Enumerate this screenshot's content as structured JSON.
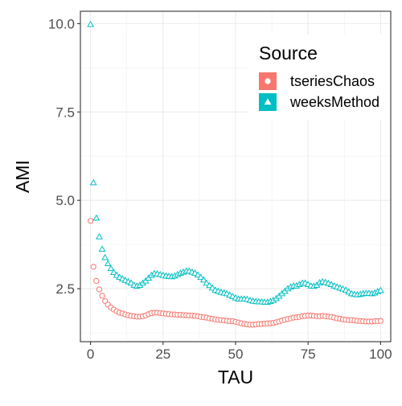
{
  "chart_data": {
    "type": "scatter",
    "xlabel": "TAU",
    "ylabel": "AMI",
    "xlim": [
      -3.5,
      103.5
    ],
    "ylim": [
      1.0,
      10.35
    ],
    "x_ticks": [
      0,
      25,
      50,
      75,
      100
    ],
    "y_ticks": [
      2.5,
      5.0,
      7.5,
      10.0
    ],
    "x_tick_labels": [
      "0",
      "25",
      "50",
      "75",
      "100"
    ],
    "y_tick_labels": [
      "2.5",
      "5.0",
      "7.5",
      "10.0"
    ],
    "grid": true,
    "legend": {
      "title": "Source",
      "position": "top-right"
    },
    "series": [
      {
        "name": "tseriesChaos",
        "color": "#F8766D",
        "marker": "circle",
        "x": [
          0,
          1,
          2,
          3,
          4,
          5,
          6,
          7,
          8,
          9,
          10,
          11,
          12,
          13,
          14,
          15,
          16,
          17,
          18,
          19,
          20,
          21,
          22,
          23,
          24,
          25,
          26,
          27,
          28,
          29,
          30,
          31,
          32,
          33,
          34,
          35,
          36,
          37,
          38,
          39,
          40,
          41,
          42,
          43,
          44,
          45,
          46,
          47,
          48,
          49,
          50,
          51,
          52,
          53,
          54,
          55,
          56,
          57,
          58,
          59,
          60,
          61,
          62,
          63,
          64,
          65,
          66,
          67,
          68,
          69,
          70,
          71,
          72,
          73,
          74,
          75,
          76,
          77,
          78,
          79,
          80,
          81,
          82,
          83,
          84,
          85,
          86,
          87,
          88,
          89,
          90,
          91,
          92,
          93,
          94,
          95,
          96,
          97,
          98,
          99,
          100
        ],
        "values": [
          4.42,
          3.12,
          2.72,
          2.48,
          2.3,
          2.15,
          2.05,
          1.97,
          1.91,
          1.86,
          1.82,
          1.8,
          1.77,
          1.75,
          1.73,
          1.72,
          1.71,
          1.71,
          1.72,
          1.74,
          1.78,
          1.81,
          1.82,
          1.82,
          1.81,
          1.8,
          1.79,
          1.78,
          1.77,
          1.77,
          1.76,
          1.76,
          1.75,
          1.75,
          1.74,
          1.74,
          1.73,
          1.72,
          1.7,
          1.69,
          1.68,
          1.66,
          1.65,
          1.63,
          1.62,
          1.61,
          1.6,
          1.59,
          1.58,
          1.58,
          1.56,
          1.54,
          1.52,
          1.5,
          1.49,
          1.48,
          1.48,
          1.49,
          1.5,
          1.5,
          1.51,
          1.52,
          1.52,
          1.53,
          1.55,
          1.57,
          1.6,
          1.62,
          1.64,
          1.66,
          1.68,
          1.69,
          1.7,
          1.72,
          1.73,
          1.74,
          1.74,
          1.73,
          1.72,
          1.72,
          1.73,
          1.72,
          1.71,
          1.7,
          1.68,
          1.66,
          1.65,
          1.63,
          1.62,
          1.61,
          1.61,
          1.6,
          1.59,
          1.58,
          1.58,
          1.57,
          1.57,
          1.57,
          1.58,
          1.58,
          1.59
        ]
      },
      {
        "name": "weeksMethod",
        "color": "#00BFC4",
        "marker": "triangle",
        "x": [
          0,
          1,
          2,
          3,
          4,
          5,
          6,
          7,
          8,
          9,
          10,
          11,
          12,
          13,
          14,
          15,
          16,
          17,
          18,
          19,
          20,
          21,
          22,
          23,
          24,
          25,
          26,
          27,
          28,
          29,
          30,
          31,
          32,
          33,
          34,
          35,
          36,
          37,
          38,
          39,
          40,
          41,
          42,
          43,
          44,
          45,
          46,
          47,
          48,
          49,
          50,
          51,
          52,
          53,
          54,
          55,
          56,
          57,
          58,
          59,
          60,
          61,
          62,
          63,
          64,
          65,
          66,
          67,
          68,
          69,
          70,
          71,
          72,
          73,
          74,
          75,
          76,
          77,
          78,
          79,
          80,
          81,
          82,
          83,
          84,
          85,
          86,
          87,
          88,
          89,
          90,
          91,
          92,
          93,
          94,
          95,
          96,
          97,
          98,
          99,
          100
        ],
        "values": [
          9.98,
          5.5,
          4.5,
          3.97,
          3.62,
          3.38,
          3.21,
          3.07,
          2.96,
          2.88,
          2.82,
          2.78,
          2.74,
          2.7,
          2.66,
          2.6,
          2.57,
          2.6,
          2.66,
          2.72,
          2.8,
          2.88,
          2.93,
          2.92,
          2.9,
          2.88,
          2.86,
          2.85,
          2.84,
          2.86,
          2.9,
          2.94,
          2.97,
          3.0,
          3.0,
          2.97,
          2.94,
          2.89,
          2.82,
          2.75,
          2.66,
          2.59,
          2.52,
          2.46,
          2.43,
          2.4,
          2.38,
          2.36,
          2.32,
          2.28,
          2.24,
          2.21,
          2.21,
          2.21,
          2.2,
          2.17,
          2.15,
          2.14,
          2.13,
          2.13,
          2.12,
          2.12,
          2.14,
          2.17,
          2.22,
          2.29,
          2.36,
          2.43,
          2.5,
          2.55,
          2.58,
          2.58,
          2.62,
          2.66,
          2.66,
          2.62,
          2.58,
          2.57,
          2.6,
          2.67,
          2.7,
          2.68,
          2.65,
          2.62,
          2.58,
          2.55,
          2.52,
          2.49,
          2.46,
          2.41,
          2.36,
          2.34,
          2.33,
          2.34,
          2.36,
          2.37,
          2.37,
          2.36,
          2.38,
          2.42,
          2.45
        ]
      }
    ]
  }
}
